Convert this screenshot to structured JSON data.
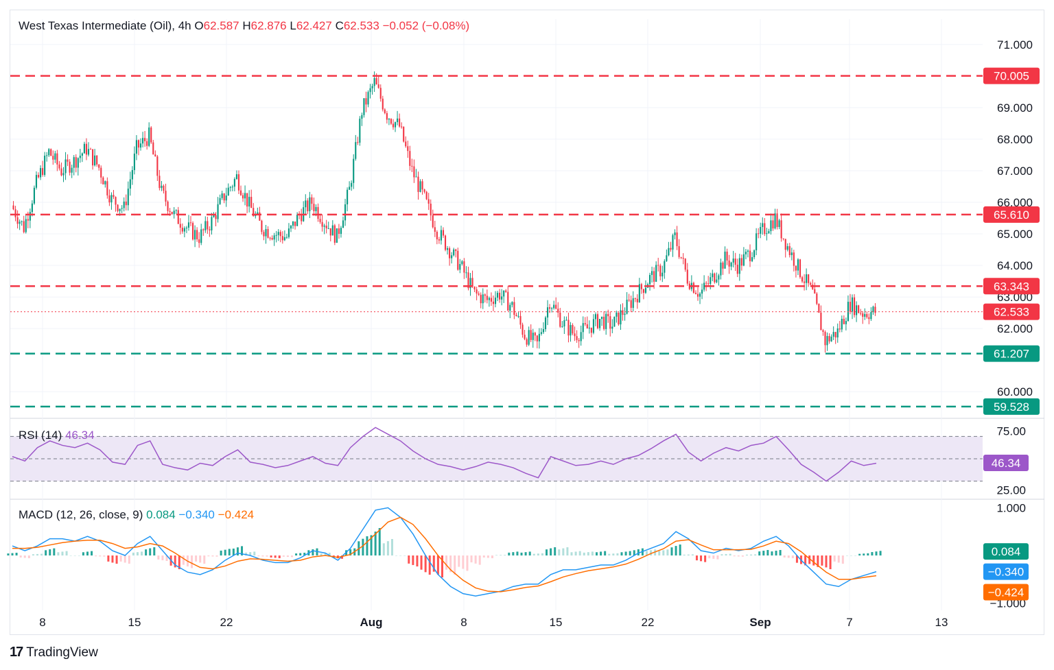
{
  "header": {
    "symbol": "West Texas Intermediate (Oil), 4h",
    "o_label": "O",
    "o_value": "62.587",
    "h_label": "H",
    "h_value": "62.876",
    "l_label": "L",
    "l_value": "62.427",
    "c_label": "C",
    "c_value": "62.533",
    "change": "−0.052 (−0.08%)"
  },
  "colors": {
    "up": "#089981",
    "down": "#f23645",
    "rsi": "#9c57c9",
    "rsi_band": "#ede7f6",
    "macd": "#2196f3",
    "signal": "#ff6d00",
    "grid": "#f0f3fa",
    "text": "#131722"
  },
  "chart_data": [
    {
      "type": "candlestick",
      "pane": "price",
      "timeframe": "4h",
      "y_ticks": [
        "71.000",
        "69.000",
        "68.000",
        "67.000",
        "66.000",
        "65.000",
        "64.000",
        "63.000",
        "62.000",
        "60.000"
      ],
      "x_ticks": [
        "8",
        "15",
        "22",
        "Aug",
        "8",
        "15",
        "22",
        "Sep",
        "7",
        "13"
      ],
      "ylim": [
        59.2,
        71.8
      ],
      "close_path": [
        [
          "Jul 4",
          65.9
        ],
        [
          "Jul 5",
          65.2
        ],
        [
          "Jul 6",
          66.6
        ],
        [
          "Jul 7",
          67.6
        ],
        [
          "Jul 8",
          67.0
        ],
        [
          "Jul 9",
          67.3
        ],
        [
          "Jul 10",
          67.7
        ],
        [
          "Jul 11",
          67.1
        ],
        [
          "Jul 12",
          66.1
        ],
        [
          "Jul 13",
          65.8
        ],
        [
          "Jul 14",
          67.7
        ],
        [
          "Jul 15",
          68.1
        ],
        [
          "Jul 16",
          66.3
        ],
        [
          "Jul 17",
          65.6
        ],
        [
          "Jul 18",
          65.2
        ],
        [
          "Jul 19",
          64.9
        ],
        [
          "Jul 20",
          65.4
        ],
        [
          "Jul 21",
          66.2
        ],
        [
          "Jul 22",
          66.8
        ],
        [
          "Jul 23",
          65.9
        ],
        [
          "Jul 24",
          65.2
        ],
        [
          "Jul 25",
          65.0
        ],
        [
          "Jul 26",
          64.9
        ],
        [
          "Jul 27",
          65.6
        ],
        [
          "Jul 28",
          66.0
        ],
        [
          "Jul 29",
          65.4
        ],
        [
          "Jul 30",
          64.9
        ],
        [
          "Jul 31",
          66.4
        ],
        [
          "Aug 1",
          68.9
        ],
        [
          "Aug 2",
          69.8
        ],
        [
          "Aug 3",
          68.8
        ],
        [
          "Aug 4",
          68.4
        ],
        [
          "Aug 5",
          67.0
        ],
        [
          "Aug 6",
          66.1
        ],
        [
          "Aug 7",
          65.1
        ],
        [
          "Aug 8",
          64.5
        ],
        [
          "Aug 9",
          63.9
        ],
        [
          "Aug 10",
          63.1
        ],
        [
          "Aug 11",
          62.9
        ],
        [
          "Aug 12",
          63.1
        ],
        [
          "Aug 13",
          62.7
        ],
        [
          "Aug 14",
          61.8
        ],
        [
          "Aug 15",
          61.5
        ],
        [
          "Aug 16",
          62.9
        ],
        [
          "Aug 17",
          62.2
        ],
        [
          "Aug 18",
          61.8
        ],
        [
          "Aug 19",
          62.0
        ],
        [
          "Aug 20",
          62.3
        ],
        [
          "Aug 21",
          62.1
        ],
        [
          "Aug 22",
          62.6
        ],
        [
          "Aug 23",
          63.1
        ],
        [
          "Aug 24",
          63.6
        ],
        [
          "Aug 25",
          63.9
        ],
        [
          "Aug 26",
          64.9
        ],
        [
          "Aug 27",
          63.6
        ],
        [
          "Aug 28",
          63.1
        ],
        [
          "Aug 29",
          63.6
        ],
        [
          "Aug 30",
          64.2
        ],
        [
          "Aug 31",
          64.0
        ],
        [
          "Sep 1",
          64.4
        ],
        [
          "Sep 2",
          65.1
        ],
        [
          "Sep 3",
          65.5
        ],
        [
          "Sep 4",
          64.6
        ],
        [
          "Sep 5",
          63.8
        ],
        [
          "Sep 6",
          63.1
        ],
        [
          "Sep 7",
          61.6
        ],
        [
          "Sep 8",
          61.9
        ],
        [
          "Sep 9",
          62.8
        ],
        [
          "Sep 10",
          62.5
        ],
        [
          "Sep 11",
          62.53
        ]
      ],
      "last": {
        "open": 62.587,
        "high": 62.876,
        "low": 62.427,
        "close": 62.533,
        "change": -0.052,
        "change_pct": -0.08
      },
      "levels": [
        {
          "value": 70.005,
          "label": "70.005",
          "color": "#f23645"
        },
        {
          "value": 65.61,
          "label": "65.610",
          "color": "#f23645"
        },
        {
          "value": 63.343,
          "label": "63.343",
          "color": "#f23645"
        },
        {
          "value": 61.207,
          "label": "61.207",
          "color": "#089981"
        },
        {
          "value": 59.528,
          "label": "59.528",
          "color": "#089981"
        }
      ],
      "current_price_label": "62.533"
    },
    {
      "type": "line",
      "pane": "rsi",
      "name": "RSI (14)",
      "value": 46.34,
      "value_label": "46.34",
      "y_ticks": [
        "75.00",
        "25.00"
      ],
      "band": [
        30,
        70
      ],
      "midline": 50,
      "ylim": [
        15,
        85
      ],
      "values": [
        52,
        48,
        60,
        66,
        62,
        60,
        64,
        58,
        47,
        45,
        62,
        66,
        45,
        42,
        40,
        46,
        44,
        52,
        58,
        47,
        45,
        42,
        44,
        48,
        52,
        46,
        44,
        60,
        70,
        78,
        72,
        66,
        57,
        50,
        45,
        43,
        40,
        43,
        47,
        45,
        42,
        37,
        33,
        52,
        48,
        44,
        45,
        48,
        45,
        50,
        53,
        59,
        66,
        72,
        56,
        48,
        55,
        60,
        57,
        62,
        64,
        70,
        58,
        45,
        38,
        30,
        38,
        48,
        44,
        46
      ]
    },
    {
      "type": "line+bar",
      "pane": "macd",
      "name": "MACD (12, 26, close, 9)",
      "histogram_label": "0.084",
      "macd_label": "−0.340",
      "signal_label": "−0.424",
      "histogram": 0.084,
      "macd": -0.34,
      "signal": -0.424,
      "y_ticks": [
        "1.000",
        "−1.000"
      ],
      "ylim": [
        -1.15,
        1.15
      ],
      "macd_values": [
        0.2,
        0.1,
        0.2,
        0.35,
        0.35,
        0.3,
        0.4,
        0.3,
        0.1,
        0.0,
        0.25,
        0.4,
        0.1,
        -0.2,
        -0.35,
        -0.4,
        -0.3,
        -0.1,
        0.05,
        0.0,
        -0.1,
        -0.15,
        -0.15,
        -0.05,
        0.1,
        0.05,
        -0.1,
        0.15,
        0.55,
        0.95,
        1.0,
        0.8,
        0.45,
        0.0,
        -0.4,
        -0.65,
        -0.8,
        -0.85,
        -0.8,
        -0.75,
        -0.65,
        -0.6,
        -0.6,
        -0.4,
        -0.3,
        -0.3,
        -0.25,
        -0.2,
        -0.2,
        -0.1,
        0.05,
        0.15,
        0.25,
        0.5,
        0.35,
        0.1,
        0.05,
        0.15,
        0.1,
        0.15,
        0.3,
        0.4,
        0.2,
        -0.1,
        -0.35,
        -0.6,
        -0.65,
        -0.5,
        -0.42,
        -0.34
      ],
      "signal_values": [
        0.15,
        0.15,
        0.17,
        0.22,
        0.27,
        0.3,
        0.32,
        0.32,
        0.25,
        0.15,
        0.18,
        0.25,
        0.2,
        0.05,
        -0.12,
        -0.25,
        -0.28,
        -0.22,
        -0.12,
        -0.07,
        -0.08,
        -0.1,
        -0.12,
        -0.1,
        -0.03,
        0.0,
        -0.04,
        0.02,
        0.2,
        0.45,
        0.7,
        0.8,
        0.65,
        0.35,
        0.0,
        -0.3,
        -0.52,
        -0.68,
        -0.75,
        -0.76,
        -0.72,
        -0.67,
        -0.64,
        -0.55,
        -0.45,
        -0.38,
        -0.32,
        -0.28,
        -0.24,
        -0.18,
        -0.08,
        0.04,
        0.14,
        0.3,
        0.33,
        0.22,
        0.12,
        0.12,
        0.12,
        0.13,
        0.2,
        0.3,
        0.25,
        0.08,
        -0.14,
        -0.35,
        -0.5,
        -0.5,
        -0.46,
        -0.424
      ]
    }
  ],
  "brand": {
    "name": "TradingView",
    "logo": "17"
  }
}
